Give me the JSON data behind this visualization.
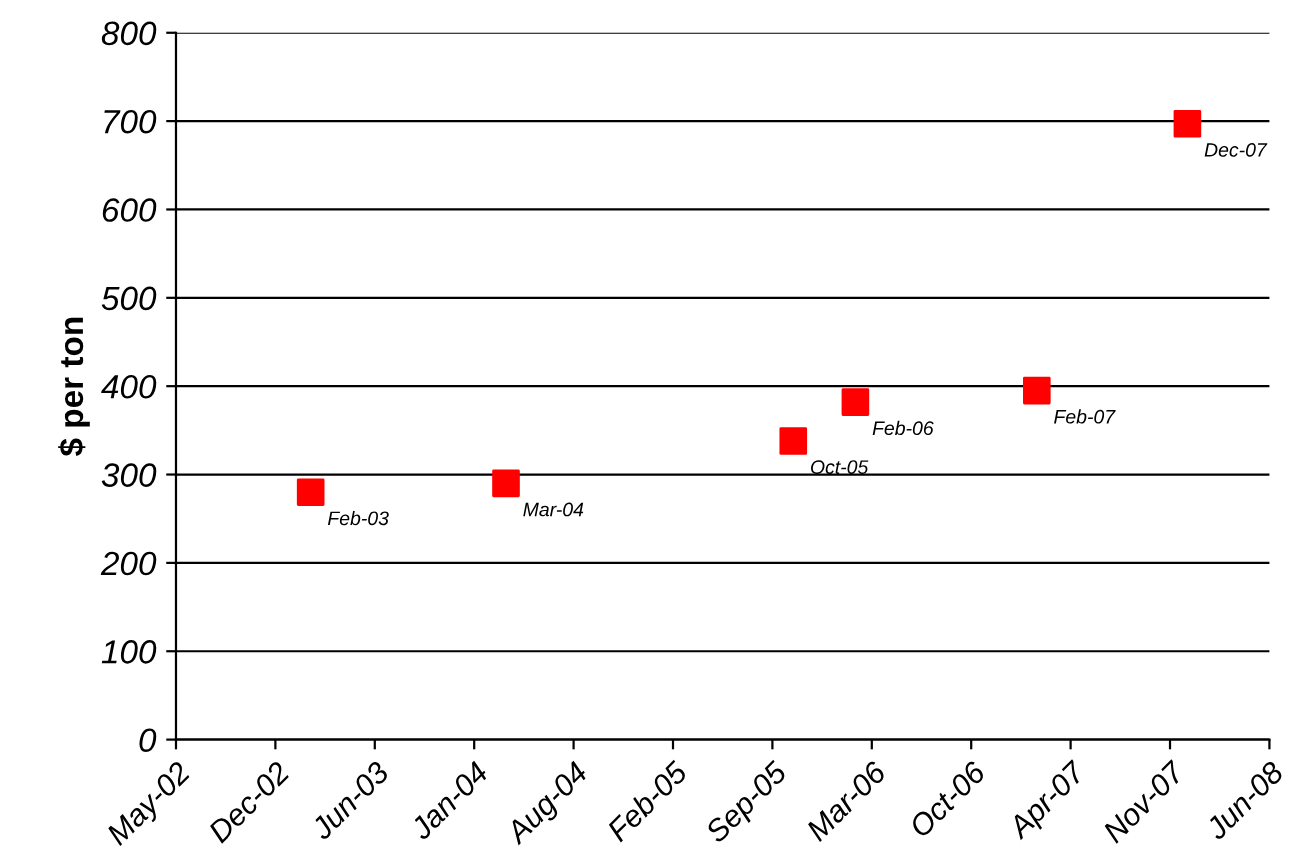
{
  "chart_data": {
    "type": "scatter",
    "ylabel": "$ per ton",
    "x": [
      "2003-02-20",
      "2004-03-19",
      "2005-10-18",
      "2006-02-20",
      "2007-02-20",
      "2007-12-20"
    ],
    "series": [
      {
        "color": "#ff0000",
        "values": [
          280,
          290,
          338,
          382,
          395,
          697
        ]
      }
    ],
    "marker": "square",
    "annotations": [
      {
        "text": "Feb-03",
        "x": "2003-02-20",
        "y": 280
      },
      {
        "text": "Mar-04",
        "x": "2004-03-19",
        "y": 290
      },
      {
        "text": "Oct-05",
        "x": "2005-10-18",
        "y": 338
      },
      {
        "text": "Feb-06",
        "x": "2006-02-20",
        "y": 382
      },
      {
        "text": "Feb-07",
        "x": "2007-02-20",
        "y": 395
      },
      {
        "text": "Dec-07",
        "x": "2007-12-20",
        "y": 697
      }
    ],
    "xlim": [
      "2002-05-25",
      "2008-06-02"
    ],
    "xticks": [
      {
        "value": "2002-05-25",
        "label": "May-02"
      },
      {
        "value": "2002-12-11",
        "label": "Dec-02"
      },
      {
        "value": "2003-06-29",
        "label": "Jun-03"
      },
      {
        "value": "2004-01-15",
        "label": "Jan-04"
      },
      {
        "value": "2004-08-02",
        "label": "Aug-04"
      },
      {
        "value": "2005-02-18",
        "label": "Feb-05"
      },
      {
        "value": "2005-09-06",
        "label": "Sep-05"
      },
      {
        "value": "2006-03-25",
        "label": "Mar-06"
      },
      {
        "value": "2006-10-11",
        "label": "Oct-06"
      },
      {
        "value": "2007-04-29",
        "label": "Apr-07"
      },
      {
        "value": "2007-11-15",
        "label": "Nov-07"
      },
      {
        "value": "2008-06-02",
        "label": "Jun-08"
      }
    ],
    "ylim": [
      0,
      800
    ],
    "yticks": [
      0,
      100,
      200,
      300,
      400,
      500,
      600,
      700,
      800
    ],
    "grid": "y"
  }
}
